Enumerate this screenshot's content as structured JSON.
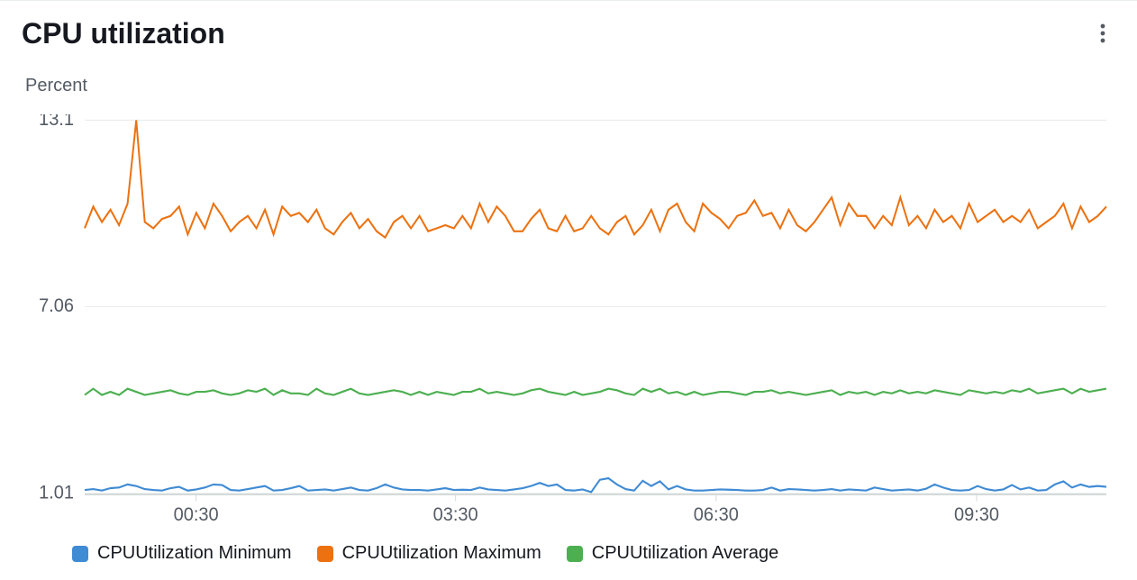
{
  "header": {
    "title": "CPU utilization"
  },
  "chart": {
    "type": "line",
    "y_axis_label": "Percent",
    "ylim": [
      1.01,
      13.1
    ],
    "y_ticks": [
      1.01,
      7.06,
      13.1
    ],
    "x_ticks": [
      "00:30",
      "03:30",
      "06:30",
      "09:30"
    ],
    "x_tick_positions": [
      0.109,
      0.363,
      0.618,
      0.873
    ],
    "x_count": 120,
    "background_color": "#ffffff",
    "grid_color": "#eaeded",
    "axis_color": "#d5dbdb",
    "label_color": "#545b64",
    "label_fontsize": 20,
    "title_fontsize": 32,
    "line_width": 2,
    "series": [
      {
        "name": "CPUUtilization Minimum",
        "color": "#3f8bd4",
        "values": [
          1.12,
          1.15,
          1.1,
          1.18,
          1.2,
          1.3,
          1.25,
          1.15,
          1.12,
          1.1,
          1.18,
          1.22,
          1.1,
          1.14,
          1.2,
          1.3,
          1.28,
          1.12,
          1.1,
          1.15,
          1.2,
          1.25,
          1.1,
          1.12,
          1.18,
          1.25,
          1.1,
          1.12,
          1.14,
          1.1,
          1.15,
          1.2,
          1.12,
          1.1,
          1.18,
          1.3,
          1.2,
          1.14,
          1.12,
          1.12,
          1.1,
          1.14,
          1.18,
          1.12,
          1.13,
          1.12,
          1.2,
          1.14,
          1.12,
          1.1,
          1.14,
          1.18,
          1.25,
          1.35,
          1.25,
          1.3,
          1.12,
          1.1,
          1.14,
          1.05,
          1.45,
          1.5,
          1.3,
          1.15,
          1.1,
          1.42,
          1.25,
          1.4,
          1.14,
          1.25,
          1.14,
          1.1,
          1.1,
          1.12,
          1.14,
          1.13,
          1.12,
          1.1,
          1.1,
          1.12,
          1.2,
          1.1,
          1.15,
          1.14,
          1.12,
          1.1,
          1.12,
          1.15,
          1.1,
          1.14,
          1.12,
          1.1,
          1.2,
          1.15,
          1.1,
          1.12,
          1.14,
          1.1,
          1.16,
          1.3,
          1.2,
          1.12,
          1.1,
          1.12,
          1.25,
          1.15,
          1.1,
          1.14,
          1.28,
          1.14,
          1.2,
          1.1,
          1.12,
          1.3,
          1.4,
          1.2,
          1.3,
          1.22,
          1.25,
          1.22
        ]
      },
      {
        "name": "CPUUtilization Maximum",
        "color": "#ec7211",
        "values": [
          9.6,
          10.3,
          9.8,
          10.2,
          9.7,
          10.4,
          13.1,
          9.8,
          9.6,
          9.9,
          10.0,
          10.3,
          9.4,
          10.1,
          9.6,
          10.4,
          10.0,
          9.5,
          9.8,
          10.0,
          9.6,
          10.2,
          9.4,
          10.3,
          10.0,
          10.1,
          9.8,
          10.2,
          9.6,
          9.4,
          9.8,
          10.1,
          9.6,
          9.9,
          9.5,
          9.3,
          9.8,
          10.0,
          9.6,
          10.0,
          9.5,
          9.6,
          9.7,
          9.6,
          10.0,
          9.6,
          10.4,
          9.8,
          10.3,
          10.0,
          9.5,
          9.5,
          9.9,
          10.2,
          9.6,
          9.5,
          10.0,
          9.5,
          9.6,
          10.0,
          9.6,
          9.4,
          9.8,
          10.0,
          9.4,
          9.7,
          10.2,
          9.5,
          10.2,
          10.4,
          9.8,
          9.5,
          10.4,
          10.1,
          9.9,
          9.6,
          10.0,
          10.1,
          10.5,
          10.0,
          10.1,
          9.6,
          10.2,
          9.7,
          9.5,
          9.8,
          10.2,
          10.6,
          9.7,
          10.4,
          10.0,
          10.0,
          9.6,
          10.0,
          9.7,
          10.6,
          9.7,
          10.0,
          9.6,
          10.2,
          9.8,
          10.0,
          9.6,
          10.4,
          9.8,
          10.0,
          10.2,
          9.8,
          10.0,
          9.8,
          10.2,
          9.6,
          9.8,
          10.0,
          10.4,
          9.6,
          10.3,
          9.8,
          10.0,
          10.3
        ]
      },
      {
        "name": "CPUUtilization Average",
        "color": "#4caf50",
        "values": [
          4.2,
          4.4,
          4.2,
          4.3,
          4.2,
          4.4,
          4.3,
          4.2,
          4.25,
          4.3,
          4.35,
          4.25,
          4.2,
          4.3,
          4.3,
          4.35,
          4.25,
          4.2,
          4.25,
          4.35,
          4.3,
          4.4,
          4.2,
          4.35,
          4.25,
          4.25,
          4.2,
          4.4,
          4.25,
          4.2,
          4.3,
          4.4,
          4.25,
          4.2,
          4.25,
          4.3,
          4.35,
          4.3,
          4.2,
          4.3,
          4.2,
          4.3,
          4.25,
          4.2,
          4.3,
          4.3,
          4.4,
          4.25,
          4.3,
          4.25,
          4.2,
          4.25,
          4.35,
          4.4,
          4.3,
          4.25,
          4.2,
          4.3,
          4.2,
          4.25,
          4.3,
          4.4,
          4.35,
          4.25,
          4.2,
          4.4,
          4.3,
          4.4,
          4.25,
          4.3,
          4.2,
          4.3,
          4.2,
          4.25,
          4.3,
          4.3,
          4.25,
          4.2,
          4.3,
          4.3,
          4.35,
          4.25,
          4.3,
          4.25,
          4.2,
          4.25,
          4.3,
          4.35,
          4.2,
          4.3,
          4.25,
          4.3,
          4.2,
          4.3,
          4.25,
          4.35,
          4.25,
          4.3,
          4.25,
          4.35,
          4.3,
          4.25,
          4.2,
          4.35,
          4.3,
          4.25,
          4.3,
          4.25,
          4.35,
          4.3,
          4.4,
          4.25,
          4.3,
          4.35,
          4.4,
          4.25,
          4.4,
          4.3,
          4.35,
          4.4
        ]
      }
    ]
  },
  "legend": {
    "items": [
      {
        "label": "CPUUtilization Minimum",
        "color": "#3f8bd4"
      },
      {
        "label": "CPUUtilization Maximum",
        "color": "#ec7211"
      },
      {
        "label": "CPUUtilization Average",
        "color": "#4caf50"
      }
    ]
  }
}
